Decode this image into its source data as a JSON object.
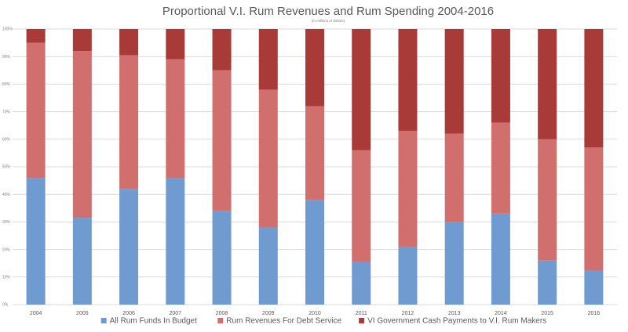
{
  "chart_data": {
    "type": "bar",
    "stacked": "percent",
    "title": "Proportional V.I. Rum Revenues and Rum Spending 2004-2016",
    "subtitle": "(in millions of dollars)",
    "xlabel": "",
    "ylabel": "",
    "ylim": [
      0,
      100
    ],
    "y_ticks": [
      "0%",
      "10%",
      "20%",
      "30%",
      "40%",
      "50%",
      "60%",
      "70%",
      "80%",
      "90%",
      "100%"
    ],
    "grid": true,
    "legend_position": "bottom",
    "categories": [
      "2004",
      "2005",
      "2006",
      "2007",
      "2008",
      "2009",
      "2010",
      "2011",
      "2012",
      "2013",
      "2014",
      "2015",
      "2016"
    ],
    "series": [
      {
        "name": "All Rum Funds In Budget",
        "color": "#6f9bd0",
        "values": [
          46,
          31.5,
          42,
          46,
          34,
          28,
          38,
          15.5,
          21,
          30,
          33,
          16,
          12.5
        ]
      },
      {
        "name": "Rum Revenues For Debt Service",
        "color": "#d06f6d",
        "values": [
          49,
          60.5,
          48.5,
          43,
          51,
          50,
          34,
          40.5,
          42,
          32,
          33,
          44,
          44.5
        ]
      },
      {
        "name": "VI Government Cash Payments to V.I. Rum Makers",
        "color": "#a83a37",
        "values": [
          5,
          8,
          9.5,
          11,
          15,
          22,
          28,
          44,
          37,
          38,
          34,
          40,
          43
        ]
      }
    ]
  }
}
